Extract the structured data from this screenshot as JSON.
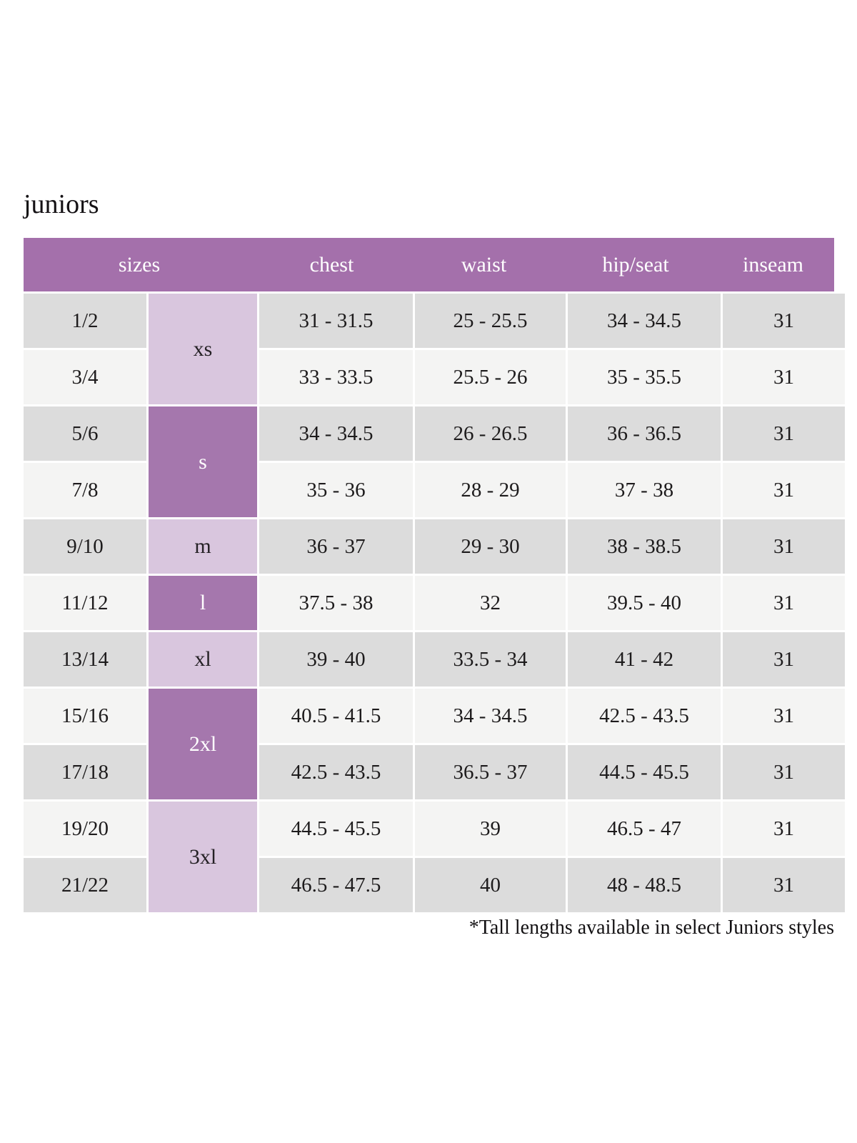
{
  "page": {
    "title": "juniors",
    "footnote": "*Tall lengths available in select Juniors styles"
  },
  "colors": {
    "header_bg": "#a470ab",
    "group_dark_bg": "#a577ad",
    "group_light_bg": "#d9c6de",
    "row_gray_bg": "#dcdcdc",
    "row_light_bg": "#f4f4f3",
    "header_text": "#ffffff",
    "body_text": "#1d1b1c"
  },
  "table": {
    "headers": [
      "sizes",
      "chest",
      "waist",
      "hip/seat",
      "inseam"
    ],
    "size_groups": [
      {
        "label": "xs",
        "span": 2,
        "shade": "light"
      },
      {
        "label": "s",
        "span": 2,
        "shade": "dark"
      },
      {
        "label": "m",
        "span": 1,
        "shade": "light"
      },
      {
        "label": "l",
        "span": 1,
        "shade": "dark"
      },
      {
        "label": "xl",
        "span": 1,
        "shade": "light"
      },
      {
        "label": "2xl",
        "span": 2,
        "shade": "dark"
      },
      {
        "label": "3xl",
        "span": 2,
        "shade": "light"
      }
    ],
    "rows": [
      {
        "size": "1/2",
        "chest": "31 - 31.5",
        "waist": "25 - 25.5",
        "hip_seat": "34 - 34.5",
        "inseam": "31"
      },
      {
        "size": "3/4",
        "chest": "33 - 33.5",
        "waist": "25.5 - 26",
        "hip_seat": "35 - 35.5",
        "inseam": "31"
      },
      {
        "size": "5/6",
        "chest": "34 - 34.5",
        "waist": "26 - 26.5",
        "hip_seat": "36 - 36.5",
        "inseam": "31"
      },
      {
        "size": "7/8",
        "chest": "35 - 36",
        "waist": "28 - 29",
        "hip_seat": "37 - 38",
        "inseam": "31"
      },
      {
        "size": "9/10",
        "chest": "36 - 37",
        "waist": "29 - 30",
        "hip_seat": "38 - 38.5",
        "inseam": "31"
      },
      {
        "size": "11/12",
        "chest": "37.5 - 38",
        "waist": "32",
        "hip_seat": "39.5 - 40",
        "inseam": "31"
      },
      {
        "size": "13/14",
        "chest": "39 - 40",
        "waist": "33.5 - 34",
        "hip_seat": "41 - 42",
        "inseam": "31"
      },
      {
        "size": "15/16",
        "chest": "40.5 - 41.5",
        "waist": "34 - 34.5",
        "hip_seat": "42.5 - 43.5",
        "inseam": "31"
      },
      {
        "size": "17/18",
        "chest": "42.5 - 43.5",
        "waist": "36.5 - 37",
        "hip_seat": "44.5 - 45.5",
        "inseam": "31"
      },
      {
        "size": "19/20",
        "chest": "44.5 - 45.5",
        "waist": "39",
        "hip_seat": "46.5 - 47",
        "inseam": "31"
      },
      {
        "size": "21/22",
        "chest": "46.5 - 47.5",
        "waist": "40",
        "hip_seat": "48 - 48.5",
        "inseam": "31"
      }
    ]
  }
}
